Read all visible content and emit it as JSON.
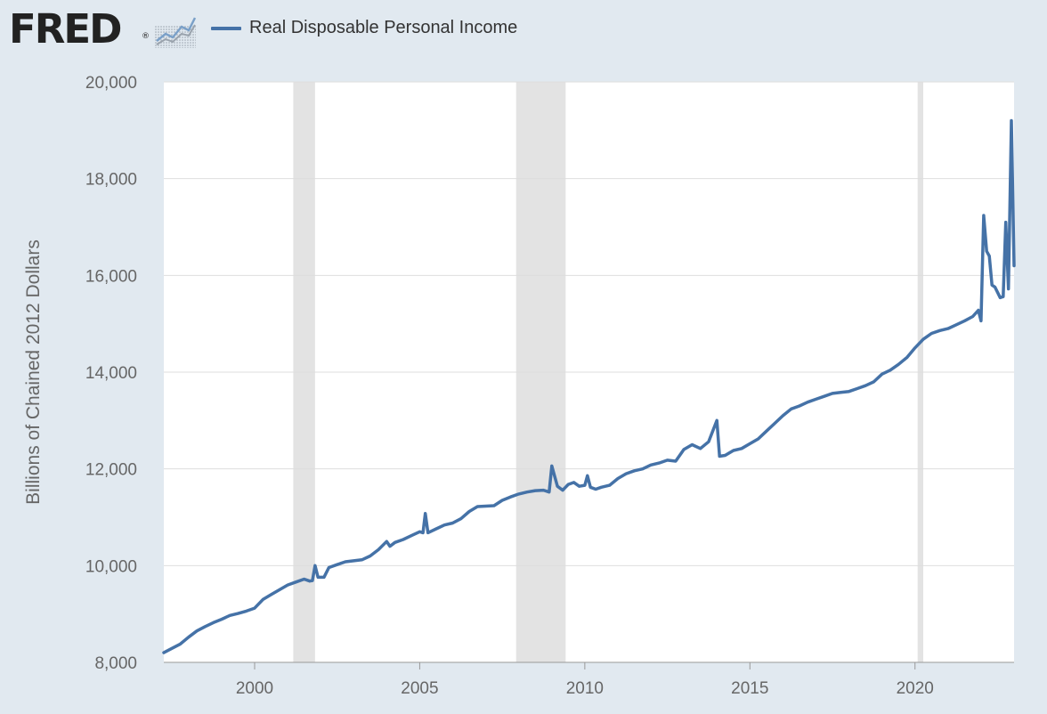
{
  "header": {
    "logo_text": "FRED",
    "logo_registered": "®",
    "legend_label": "Real Disposable Personal Income",
    "series_color": "#4572a7"
  },
  "chart_data": {
    "type": "line",
    "title": "",
    "xlabel": "",
    "ylabel": "Billions of Chained 2012 Dollars",
    "xlim": [
      1997.25,
      2023.0
    ],
    "ylim": [
      8000,
      20000
    ],
    "x_ticks": [
      2000,
      2005,
      2010,
      2015,
      2020
    ],
    "x_tick_labels": [
      "2000",
      "2005",
      "2010",
      "2015",
      "2020"
    ],
    "y_ticks": [
      8000,
      10000,
      12000,
      14000,
      16000,
      18000,
      20000
    ],
    "y_tick_labels": [
      "8,000",
      "10,000",
      "12,000",
      "14,000",
      "16,000",
      "18,000",
      "20,000"
    ],
    "grid": true,
    "legend": "top-left",
    "recession_shading": [
      [
        2001.17,
        2001.83
      ],
      [
        2007.92,
        2009.42
      ],
      [
        2020.08,
        2020.25
      ]
    ],
    "series": [
      {
        "name": "Real Disposable Personal Income",
        "color": "#4572a7",
        "points": [
          [
            1997.25,
            8200
          ],
          [
            1997.5,
            8290
          ],
          [
            1997.75,
            8380
          ],
          [
            1998.0,
            8520
          ],
          [
            1998.25,
            8650
          ],
          [
            1998.5,
            8740
          ],
          [
            1998.75,
            8820
          ],
          [
            1999.0,
            8890
          ],
          [
            1999.25,
            8970
          ],
          [
            1999.5,
            9010
          ],
          [
            1999.75,
            9060
          ],
          [
            2000.0,
            9120
          ],
          [
            2000.25,
            9300
          ],
          [
            2000.5,
            9400
          ],
          [
            2000.75,
            9500
          ],
          [
            2001.0,
            9600
          ],
          [
            2001.25,
            9660
          ],
          [
            2001.5,
            9720
          ],
          [
            2001.67,
            9680
          ],
          [
            2001.75,
            9690
          ],
          [
            2001.83,
            10000
          ],
          [
            2001.92,
            9760
          ],
          [
            2002.1,
            9760
          ],
          [
            2002.25,
            9960
          ],
          [
            2002.5,
            10020
          ],
          [
            2002.75,
            10080
          ],
          [
            2003.0,
            10100
          ],
          [
            2003.25,
            10120
          ],
          [
            2003.5,
            10200
          ],
          [
            2003.75,
            10330
          ],
          [
            2004.0,
            10500
          ],
          [
            2004.1,
            10400
          ],
          [
            2004.25,
            10480
          ],
          [
            2004.5,
            10540
          ],
          [
            2004.75,
            10620
          ],
          [
            2005.0,
            10700
          ],
          [
            2005.1,
            10680
          ],
          [
            2005.17,
            11080
          ],
          [
            2005.25,
            10680
          ],
          [
            2005.5,
            10760
          ],
          [
            2005.75,
            10840
          ],
          [
            2006.0,
            10880
          ],
          [
            2006.25,
            10970
          ],
          [
            2006.5,
            11120
          ],
          [
            2006.75,
            11220
          ],
          [
            2007.0,
            11230
          ],
          [
            2007.25,
            11240
          ],
          [
            2007.5,
            11350
          ],
          [
            2007.75,
            11420
          ],
          [
            2008.0,
            11480
          ],
          [
            2008.25,
            11520
          ],
          [
            2008.5,
            11550
          ],
          [
            2008.75,
            11560
          ],
          [
            2008.92,
            11520
          ],
          [
            2009.0,
            12060
          ],
          [
            2009.17,
            11640
          ],
          [
            2009.33,
            11560
          ],
          [
            2009.5,
            11680
          ],
          [
            2009.67,
            11720
          ],
          [
            2009.83,
            11640
          ],
          [
            2010.0,
            11660
          ],
          [
            2010.08,
            11860
          ],
          [
            2010.17,
            11620
          ],
          [
            2010.33,
            11580
          ],
          [
            2010.5,
            11620
          ],
          [
            2010.75,
            11660
          ],
          [
            2011.0,
            11800
          ],
          [
            2011.25,
            11900
          ],
          [
            2011.5,
            11960
          ],
          [
            2011.75,
            12000
          ],
          [
            2012.0,
            12080
          ],
          [
            2012.25,
            12120
          ],
          [
            2012.5,
            12180
          ],
          [
            2012.75,
            12160
          ],
          [
            2013.0,
            12400
          ],
          [
            2013.25,
            12500
          ],
          [
            2013.5,
            12420
          ],
          [
            2013.75,
            12560
          ],
          [
            2014.0,
            13000
          ],
          [
            2014.08,
            12260
          ],
          [
            2014.25,
            12280
          ],
          [
            2014.5,
            12380
          ],
          [
            2014.75,
            12420
          ],
          [
            2015.0,
            12520
          ],
          [
            2015.25,
            12620
          ],
          [
            2015.5,
            12780
          ],
          [
            2015.75,
            12940
          ],
          [
            2016.0,
            13100
          ],
          [
            2016.25,
            13240
          ],
          [
            2016.5,
            13300
          ],
          [
            2016.75,
            13380
          ],
          [
            2017.0,
            13440
          ],
          [
            2017.25,
            13500
          ],
          [
            2017.5,
            13560
          ],
          [
            2017.75,
            13580
          ],
          [
            2018.0,
            13600
          ],
          [
            2018.25,
            13660
          ],
          [
            2018.5,
            13720
          ],
          [
            2018.75,
            13800
          ],
          [
            2019.0,
            13960
          ],
          [
            2019.25,
            14040
          ],
          [
            2019.5,
            14160
          ],
          [
            2019.75,
            14300
          ],
          [
            2020.0,
            14500
          ],
          [
            2020.25,
            14680
          ],
          [
            2020.5,
            14800
          ],
          [
            2020.75,
            14860
          ],
          [
            2021.0,
            14900
          ],
          [
            2021.25,
            14980
          ],
          [
            2021.5,
            15060
          ],
          [
            2021.75,
            15150
          ],
          [
            2021.92,
            15280
          ],
          [
            2022.0,
            15060
          ],
          [
            2022.08,
            17240
          ],
          [
            2022.17,
            16500
          ],
          [
            2022.25,
            16400
          ],
          [
            2022.33,
            15800
          ],
          [
            2022.42,
            15760
          ],
          [
            2022.58,
            15540
          ],
          [
            2022.67,
            15560
          ],
          [
            2022.75,
            17100
          ],
          [
            2022.83,
            15720
          ],
          [
            2022.92,
            19200
          ],
          [
            2023.0,
            16200
          ]
        ]
      }
    ]
  }
}
